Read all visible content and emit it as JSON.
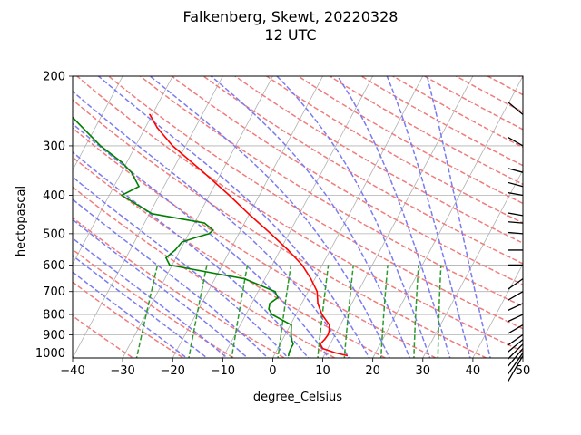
{
  "chart_data": {
    "type": "line",
    "title": "Falkenberg, Skewt, 20220328",
    "subtitle": "12 UTC",
    "xlabel": "degree_Celsius",
    "ylabel": "hectopascal",
    "xlim": [
      -40,
      50
    ],
    "ylim": [
      1030,
      200
    ],
    "y_scale": "log",
    "x_ticks": [
      -40,
      -30,
      -20,
      -10,
      0,
      10,
      20,
      30,
      40,
      50
    ],
    "x_tick_labels": [
      "−40",
      "−30",
      "−20",
      "−10",
      "0",
      "10",
      "20",
      "30",
      "40",
      "50"
    ],
    "y_ticks": [
      1000,
      900,
      800,
      700,
      600,
      500,
      400,
      300,
      200
    ],
    "y_tick_labels": [
      "1000",
      "900",
      "800",
      "700",
      "600",
      "500",
      "400",
      "300",
      "200"
    ],
    "grid": true,
    "skew": 30,
    "colors": {
      "temperature": "#ff0000",
      "dewpoint": "#008000",
      "dry_adiabats": "#f07c7c",
      "moist_adiabats": "#7c7cf0",
      "mixing_ratio": "#2c9a2c",
      "isotherms": "#b0b0b0",
      "barbs": "#000000"
    },
    "series": [
      {
        "key": "temperature",
        "pressure": [
          1016,
          1000,
          975,
          950,
          925,
          900,
          880,
          850,
          800,
          750,
          700,
          650,
          600,
          550,
          500,
          450,
          400,
          350,
          300,
          270,
          250
        ],
        "values": [
          14.6,
          12.0,
          9.0,
          8.0,
          8.4,
          8.6,
          8.4,
          7.8,
          5.2,
          3.2,
          1.8,
          -0.8,
          -4.0,
          -8.4,
          -13.6,
          -19.6,
          -26.0,
          -33.6,
          -42.6,
          -47.6,
          -50.5
        ]
      },
      {
        "key": "dewpoint",
        "pressure": [
          1016,
          1000,
          975,
          950,
          925,
          900,
          880,
          850,
          800,
          775,
          750,
          725,
          700,
          650,
          600,
          575,
          550,
          525,
          510,
          500,
          490,
          470,
          445,
          400,
          380,
          350,
          330,
          300,
          250
        ],
        "values": [
          2.9,
          2.7,
          2.6,
          2.6,
          1.8,
          1.2,
          0.8,
          0.2,
          -4.8,
          -6.0,
          -6.4,
          -5.4,
          -6.6,
          -14.0,
          -30.5,
          -32.0,
          -31.0,
          -30.5,
          -28.0,
          -26.0,
          -25.5,
          -28.0,
          -39.5,
          -47.5,
          -45.0,
          -48.0,
          -51.0,
          -57.0,
          -66.5
        ]
      }
    ],
    "wind_barbs": [
      {
        "pressure": 1016,
        "dir_deg": 210,
        "speed_kt": 10
      },
      {
        "pressure": 1000,
        "dir_deg": 215,
        "speed_kt": 15
      },
      {
        "pressure": 975,
        "dir_deg": 220,
        "speed_kt": 15
      },
      {
        "pressure": 950,
        "dir_deg": 225,
        "speed_kt": 15
      },
      {
        "pressure": 925,
        "dir_deg": 230,
        "speed_kt": 15
      },
      {
        "pressure": 900,
        "dir_deg": 235,
        "speed_kt": 15
      },
      {
        "pressure": 850,
        "dir_deg": 240,
        "speed_kt": 15
      },
      {
        "pressure": 800,
        "dir_deg": 245,
        "speed_kt": 20
      },
      {
        "pressure": 750,
        "dir_deg": 245,
        "speed_kt": 20
      },
      {
        "pressure": 700,
        "dir_deg": 240,
        "speed_kt": 20
      },
      {
        "pressure": 650,
        "dir_deg": 235,
        "speed_kt": 20
      },
      {
        "pressure": 600,
        "dir_deg": 270,
        "speed_kt": 25
      },
      {
        "pressure": 550,
        "dir_deg": 270,
        "speed_kt": 25
      },
      {
        "pressure": 500,
        "dir_deg": 275,
        "speed_kt": 25
      },
      {
        "pressure": 470,
        "dir_deg": 275,
        "speed_kt": 25
      },
      {
        "pressure": 450,
        "dir_deg": 280,
        "speed_kt": 25
      },
      {
        "pressure": 400,
        "dir_deg": 280,
        "speed_kt": 25
      },
      {
        "pressure": 380,
        "dir_deg": 285,
        "speed_kt": 25
      },
      {
        "pressure": 350,
        "dir_deg": 285,
        "speed_kt": 25
      },
      {
        "pressure": 300,
        "dir_deg": 300,
        "speed_kt": 20
      },
      {
        "pressure": 250,
        "dir_deg": 310,
        "speed_kt": 20
      }
    ]
  }
}
